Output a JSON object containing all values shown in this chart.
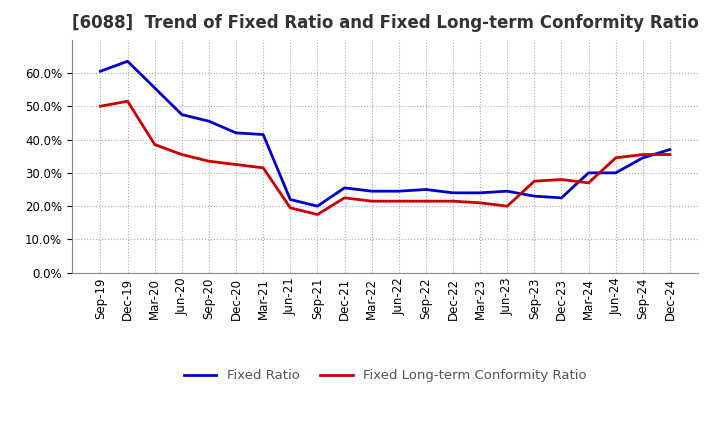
{
  "title": "[6088]  Trend of Fixed Ratio and Fixed Long-term Conformity Ratio",
  "x_labels": [
    "Sep-19",
    "Dec-19",
    "Mar-20",
    "Jun-20",
    "Sep-20",
    "Dec-20",
    "Mar-21",
    "Jun-21",
    "Sep-21",
    "Dec-21",
    "Mar-22",
    "Jun-22",
    "Sep-22",
    "Dec-22",
    "Mar-23",
    "Jun-23",
    "Sep-23",
    "Dec-23",
    "Mar-24",
    "Jun-24",
    "Sep-24",
    "Dec-24"
  ],
  "fixed_ratio": [
    0.605,
    0.635,
    0.555,
    0.475,
    0.455,
    0.42,
    0.415,
    0.22,
    0.2,
    0.255,
    0.245,
    0.245,
    0.25,
    0.24,
    0.24,
    0.245,
    0.23,
    0.225,
    0.3,
    0.3,
    0.345,
    0.37
  ],
  "fixed_lt_ratio": [
    0.5,
    0.515,
    0.385,
    0.355,
    0.335,
    0.325,
    0.315,
    0.195,
    0.175,
    0.225,
    0.215,
    0.215,
    0.215,
    0.215,
    0.21,
    0.2,
    0.275,
    0.28,
    0.27,
    0.345,
    0.355,
    0.355
  ],
  "fixed_ratio_color": "#0000cc",
  "fixed_lt_ratio_color": "#cc0000",
  "bg_color": "#ffffff",
  "grid_color": "#aaaaaa",
  "ylim": [
    0.0,
    0.7
  ],
  "yticks": [
    0.0,
    0.1,
    0.2,
    0.3,
    0.4,
    0.5,
    0.6
  ],
  "legend_labels": [
    "Fixed Ratio",
    "Fixed Long-term Conformity Ratio"
  ],
  "title_fontsize": 12,
  "axis_fontsize": 8.5,
  "legend_fontsize": 9.5
}
